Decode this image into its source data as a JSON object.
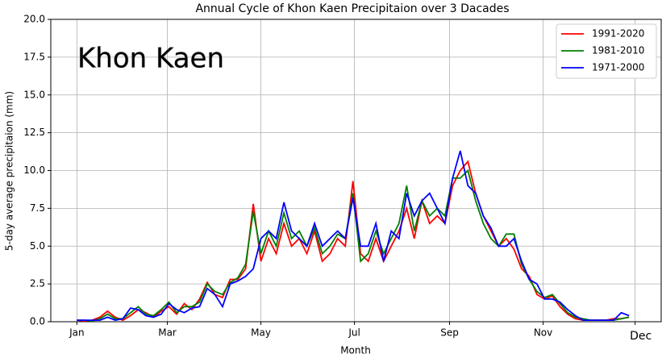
{
  "chart_data": {
    "type": "line",
    "title": "Annual Cycle of Khon Kaen Precipitaion over 3 Dacades",
    "annotation": "Khon Kaen",
    "x_label": "Month",
    "y_label": "5-day average precipitaion (mm)",
    "x": [
      1,
      6,
      11,
      16,
      21,
      26,
      31,
      36,
      41,
      46,
      51,
      56,
      61,
      66,
      71,
      76,
      81,
      86,
      91,
      96,
      101,
      106,
      111,
      116,
      121,
      126,
      131,
      136,
      141,
      146,
      151,
      156,
      161,
      166,
      171,
      176,
      181,
      186,
      191,
      196,
      201,
      206,
      211,
      216,
      221,
      226,
      231,
      236,
      241,
      246,
      251,
      256,
      261,
      266,
      271,
      276,
      281,
      286,
      291,
      296,
      301,
      306,
      311,
      316,
      321,
      326,
      331,
      336,
      341,
      346,
      351,
      356,
      361
    ],
    "series": [
      {
        "name": "1991-2020",
        "color": "#ff0000",
        "values": [
          0.1,
          0.05,
          0.1,
          0.3,
          0.7,
          0.3,
          0.1,
          0.4,
          0.8,
          0.6,
          0.3,
          0.7,
          1.0,
          0.5,
          1.2,
          0.8,
          1.5,
          2.6,
          1.8,
          1.6,
          2.8,
          2.8,
          3.5,
          7.8,
          4.0,
          5.5,
          4.5,
          6.5,
          5.0,
          5.5,
          4.5,
          6.0,
          4.0,
          4.5,
          5.5,
          5.0,
          9.3,
          4.5,
          4.0,
          5.5,
          4.0,
          5.0,
          6.0,
          7.5,
          5.5,
          8.0,
          6.5,
          7.0,
          6.5,
          9.0,
          10.0,
          10.6,
          8.5,
          7.0,
          6.0,
          5.0,
          5.5,
          4.8,
          3.5,
          3.0,
          1.8,
          1.5,
          1.7,
          1.0,
          0.5,
          0.2,
          0.1,
          0.1,
          0.1,
          0.1,
          0.2,
          0.2,
          0.3
        ]
      },
      {
        "name": "1981-2010",
        "color": "#008000",
        "values": [
          0.1,
          0.1,
          0.05,
          0.2,
          0.5,
          0.2,
          0.2,
          0.6,
          1.0,
          0.5,
          0.4,
          0.8,
          1.3,
          0.6,
          1.0,
          1.0,
          1.3,
          2.5,
          2.0,
          1.8,
          2.6,
          2.9,
          3.8,
          7.3,
          4.5,
          6.0,
          5.0,
          7.2,
          5.5,
          6.0,
          5.0,
          6.2,
          4.5,
          5.0,
          5.8,
          5.5,
          8.5,
          4.0,
          4.5,
          6.0,
          4.5,
          5.5,
          6.5,
          9.0,
          6.0,
          8.0,
          7.0,
          7.5,
          7.0,
          9.5,
          9.5,
          10.0,
          8.0,
          6.5,
          5.5,
          5.0,
          5.8,
          5.8,
          3.8,
          2.8,
          2.0,
          1.6,
          1.8,
          1.2,
          0.6,
          0.3,
          0.2,
          0.1,
          0.1,
          0.1,
          0.1,
          0.2,
          0.3
        ]
      },
      {
        "name": "1971-2000",
        "color": "#0000ff",
        "values": [
          0.1,
          0.1,
          0.1,
          0.1,
          0.3,
          0.1,
          0.2,
          0.9,
          0.8,
          0.4,
          0.3,
          0.5,
          1.2,
          0.8,
          0.6,
          0.9,
          1.0,
          2.2,
          1.8,
          1.0,
          2.5,
          2.7,
          3.0,
          3.5,
          5.5,
          6.0,
          5.5,
          7.9,
          6.0,
          5.5,
          5.0,
          6.5,
          5.0,
          5.5,
          6.0,
          5.5,
          8.2,
          5.0,
          5.0,
          6.5,
          4.0,
          6.0,
          5.5,
          8.5,
          7.0,
          8.0,
          8.5,
          7.5,
          6.5,
          9.5,
          11.3,
          9.0,
          8.5,
          7.0,
          6.2,
          5.0,
          5.0,
          5.5,
          4.0,
          2.8,
          2.5,
          1.5,
          1.5,
          1.3,
          0.8,
          0.4,
          0.1,
          0.1,
          0.1,
          0.1,
          0.1,
          0.6,
          0.4
        ]
      }
    ],
    "xlim": [
      -16,
      382
    ],
    "xticks": [
      {
        "value": 1,
        "label": "Jan"
      },
      {
        "value": 60,
        "label": "Mar"
      },
      {
        "value": 121,
        "label": "May"
      },
      {
        "value": 182,
        "label": "Jul"
      },
      {
        "value": 244,
        "label": "Sep"
      },
      {
        "value": 305,
        "label": "Nov"
      },
      {
        "value": 365,
        "label": "Dec"
      }
    ],
    "ylim": [
      0,
      20
    ],
    "yticks": [
      {
        "value": 0,
        "label": "0.0"
      },
      2.5,
      {
        "value": 5,
        "label": "5.0"
      },
      7.5,
      {
        "value": 10,
        "label": "10.0"
      },
      12.5,
      {
        "value": 15,
        "label": "15.0"
      },
      17.5,
      {
        "value": 20,
        "label": "20.0"
      }
    ],
    "grid": true,
    "legend": "upper right"
  }
}
